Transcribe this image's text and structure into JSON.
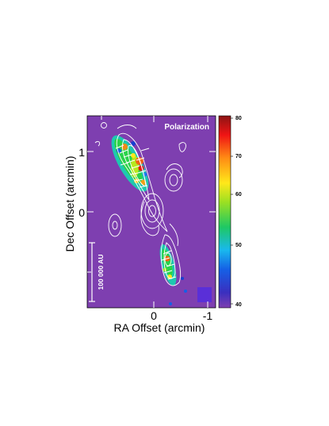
{
  "chart_data": {
    "type": "heatmap",
    "map_label": "Polarization",
    "xlabel": "RA  Offset  (arcmin)",
    "ylabel": "Dec  Offset  (arcmin)",
    "x_ticks": [
      "0",
      "-1"
    ],
    "y_ticks": [
      "1",
      "0"
    ],
    "scale_bar_label": "100 000 AU",
    "colorbar": {
      "ticks": [
        "80",
        "70",
        "60",
        "50",
        "40"
      ],
      "range": [
        38,
        81
      ]
    },
    "background_color": "#7e3fb0"
  }
}
